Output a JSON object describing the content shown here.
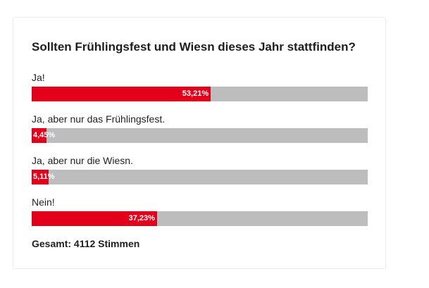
{
  "chart_data": {
    "type": "bar",
    "orientation": "horizontal",
    "title": "Sollten Frühlingsfest und Wiesn dieses Jahr stattfinden?",
    "categories": [
      "Ja!",
      "Ja, aber nur das Frühlingsfest.",
      "Ja, aber nur die Wiesn.",
      "Nein!"
    ],
    "values": [
      53.21,
      4.45,
      5.11,
      37.23
    ],
    "value_labels": [
      "53,21%",
      "4,45%",
      "5,11%",
      "37,23%"
    ],
    "xlim": [
      0,
      100
    ],
    "total_label": "Gesamt: 4112 Stimmen"
  },
  "colors": {
    "fill": "#e2001a",
    "track": "#bdbdbd",
    "text": "#222222",
    "value_text": "#ffffff"
  }
}
